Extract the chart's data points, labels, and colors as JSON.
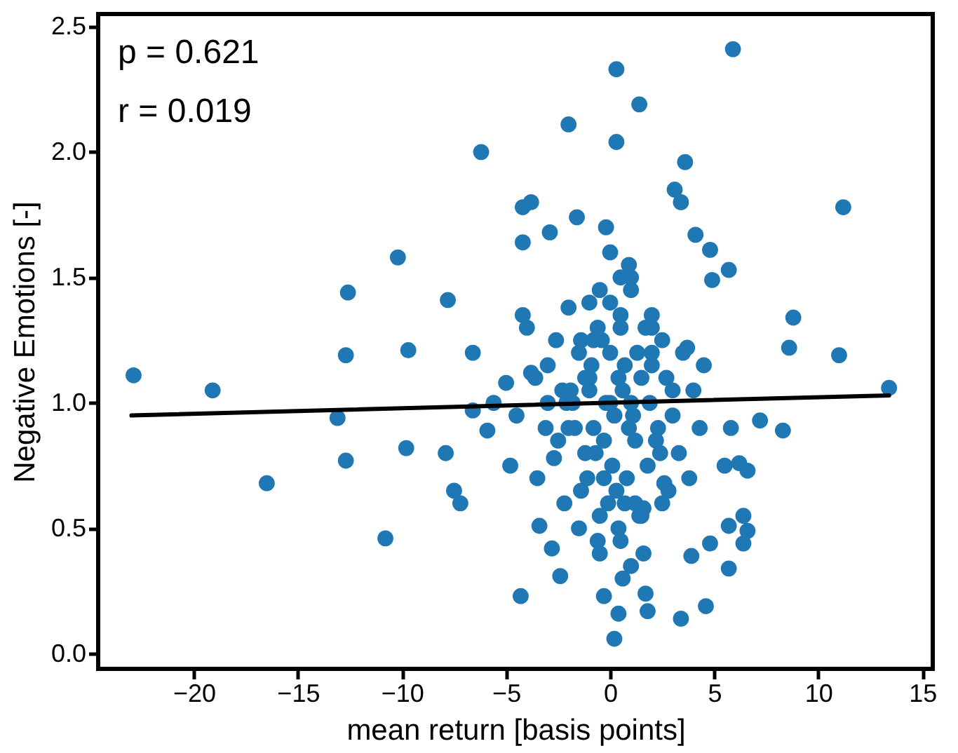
{
  "chart_data": {
    "type": "scatter",
    "xlabel": "mean return [basis points]",
    "ylabel": "Negative Emotions [-]",
    "annotations": [
      "p = 0.621",
      "r = 0.019"
    ],
    "xlim": [
      -24.6,
      15.5
    ],
    "ylim": [
      -0.06,
      2.55
    ],
    "xticks": [
      {
        "value": -20,
        "label": "−20"
      },
      {
        "value": -15,
        "label": "−15"
      },
      {
        "value": -10,
        "label": "−10"
      },
      {
        "value": -5,
        "label": "−5"
      },
      0,
      5,
      10,
      15
    ],
    "yticks": [
      {
        "value": 0,
        "label": "0.0"
      },
      {
        "value": 0.5,
        "label": "0.5"
      },
      {
        "value": 1,
        "label": "1.0"
      },
      {
        "value": 1.5,
        "label": "1.5"
      },
      {
        "value": 2,
        "label": "2.0"
      },
      {
        "value": 2.5,
        "label": "2.5"
      }
    ],
    "grid": false,
    "series": [
      {
        "marker": "circle",
        "color": "#1f77b4",
        "x": [
          -0.2,
          0.4,
          0.9,
          1.3,
          -0.7,
          -1.2,
          1.9,
          2.2,
          -0.4,
          0.1,
          0.6,
          1.1,
          -0.9,
          -1.7,
          2.7,
          -2.3,
          0.3,
          0.8,
          -0.1,
          1.4,
          -0.6,
          0.0,
          0.5,
          1.0,
          -1.1,
          2.0,
          -2.1,
          1.7,
          -0.3,
          0.2,
          0.7,
          -1.4,
          1.2,
          2.4,
          -0.8,
          0.9,
          -0.2,
          0.4,
          1.6,
          -1.9,
          -22.9,
          -19.1,
          -16.5,
          -13.1,
          -12.7,
          -12.7,
          -12.6,
          -10.8,
          -10.2,
          -9.8,
          -9.7,
          -7.8,
          -7.9,
          -7.5,
          -7.2,
          -6.6,
          -6.6,
          -6.2,
          -5.9,
          -5.6,
          -4.3,
          -4.2,
          -4.2,
          -3.8,
          -3.4,
          -2.9,
          -2.8,
          -2.4,
          -2.0,
          -1.6,
          0.3,
          1.4,
          0.3,
          5.9,
          3.6,
          3.1,
          3.4,
          4.1,
          4.8,
          4.9,
          5.7,
          8.8,
          8.6,
          11.2,
          11.0,
          13.4,
          8.3,
          7.2,
          5.8,
          5.5,
          5.7,
          6.6,
          6.4,
          5.7,
          4.6,
          3.4,
          1.8,
          0.2,
          0.4,
          -0.3,
          1.7,
          3.9,
          4.8,
          6.2,
          6.6,
          6.4,
          -5,
          -4.5,
          -4,
          -3.5,
          -3,
          -2.5,
          -2,
          -1.5,
          -1,
          -0.5,
          0,
          0.5,
          1,
          1.5,
          2,
          2.5,
          3,
          3.5,
          4,
          4.5,
          -4.8,
          -4.2,
          -3.6,
          -3.1,
          -2.6,
          -2.2,
          -1.8,
          -1.2,
          -0.8,
          -0.3,
          0.2,
          0.7,
          1.2,
          1.8,
          2.3,
          2.8,
          3.3,
          3.8,
          4.3,
          -3,
          -2,
          -1,
          0,
          1,
          2,
          3,
          -1.5,
          -0.5,
          0.5,
          1.5,
          2.5,
          -1,
          0,
          1,
          2,
          -0.5,
          0.5,
          -3.8,
          -2.7,
          -1.4,
          -0.6,
          0.6,
          1.6,
          2.6,
          3.7
        ],
        "values": [
          1.0,
          1.1,
          0.9,
          1.2,
          0.8,
          1.1,
          1.0,
          0.85,
          1.25,
          0.75,
          1.05,
          0.95,
          1.15,
          0.9,
          1.1,
          1.05,
          0.65,
          0.7,
          0.6,
          0.55,
          1.3,
          1.4,
          1.35,
          1.45,
          0.7,
          1.2,
          1.0,
          1.3,
          0.85,
          0.95,
          1.15,
          1.25,
          0.6,
          0.8,
          0.9,
          1.55,
          1.7,
          0.5,
          0.4,
          1.05,
          1.11,
          1.05,
          0.68,
          0.94,
          0.77,
          1.19,
          1.44,
          0.46,
          1.58,
          0.82,
          1.21,
          1.41,
          0.8,
          0.65,
          0.6,
          0.97,
          1.2,
          2.0,
          0.89,
          1.0,
          0.23,
          1.78,
          1.64,
          1.8,
          0.51,
          1.68,
          0.42,
          0.31,
          2.11,
          1.74,
          2.33,
          2.19,
          2.04,
          2.41,
          1.96,
          1.85,
          1.8,
          1.67,
          1.61,
          1.49,
          1.53,
          1.34,
          1.22,
          1.78,
          1.19,
          1.06,
          0.89,
          0.93,
          0.9,
          0.75,
          0.51,
          0.49,
          0.44,
          0.34,
          0.19,
          0.14,
          0.17,
          0.06,
          0.16,
          0.23,
          0.24,
          0.39,
          0.44,
          0.76,
          0.73,
          0.55,
          1.08,
          0.95,
          1.3,
          0.7,
          1.15,
          0.85,
          1.38,
          1.2,
          1.05,
          1.45,
          1.6,
          1.3,
          1.5,
          1.1,
          1.35,
          1.25,
          0.95,
          1.2,
          1.05,
          1.15,
          0.75,
          1.35,
          1.1,
          0.9,
          1.25,
          0.6,
          1.0,
          0.8,
          1.25,
          0.7,
          0.95,
          0.6,
          0.85,
          0.75,
          0.9,
          0.65,
          0.8,
          0.7,
          0.9,
          1.0,
          0.9,
          1.1,
          1.2,
          1.0,
          1.15,
          1.05,
          0.5,
          0.55,
          0.45,
          0.55,
          0.6,
          1.4,
          1.0,
          0.35,
          1.3,
          0.4,
          1.5,
          1.12,
          0.78,
          0.65,
          0.45,
          0.3,
          0.58,
          0.68,
          1.22
        ]
      },
      {
        "type": "line",
        "color": "#000000",
        "x": [
          -23,
          13.4
        ],
        "values": [
          0.95,
          1.03
        ]
      }
    ]
  }
}
